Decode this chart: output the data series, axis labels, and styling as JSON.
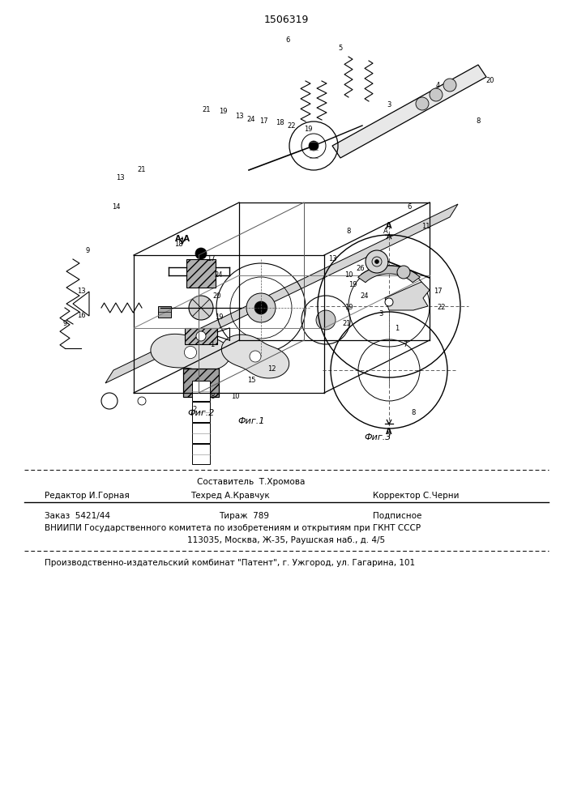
{
  "patent_number": "1506319",
  "background_color": "#ffffff",
  "fig_width": 7.07,
  "fig_height": 10.0,
  "dpi": 100,
  "footer": {
    "line1_left": "Редактор И.Горная",
    "line1_center": "Составитель  Т.Хромова",
    "line2_left": "Редактор И.Горная",
    "line2_center": "Техред А.Кравчук",
    "line2_right": "Корректор С.Черни",
    "order": "Заказ  5421/44",
    "tiraж": "Тираж  789",
    "podpis": "Подписное",
    "vniipи": "ВНИИПИ Государственного комитета по изобретениям и открытиям при ГКНТ СССР",
    "addr": "113035, Москва, Ж-35, Раушская наб., д. 4/5",
    "patent_combine": "Производственно-издательский комбинат \"Патент\", г. Ужгород, ул. Гагарина, 101"
  },
  "fig_labels": [
    "Фиг.1",
    "Фиг.2",
    "Фиг.3"
  ]
}
